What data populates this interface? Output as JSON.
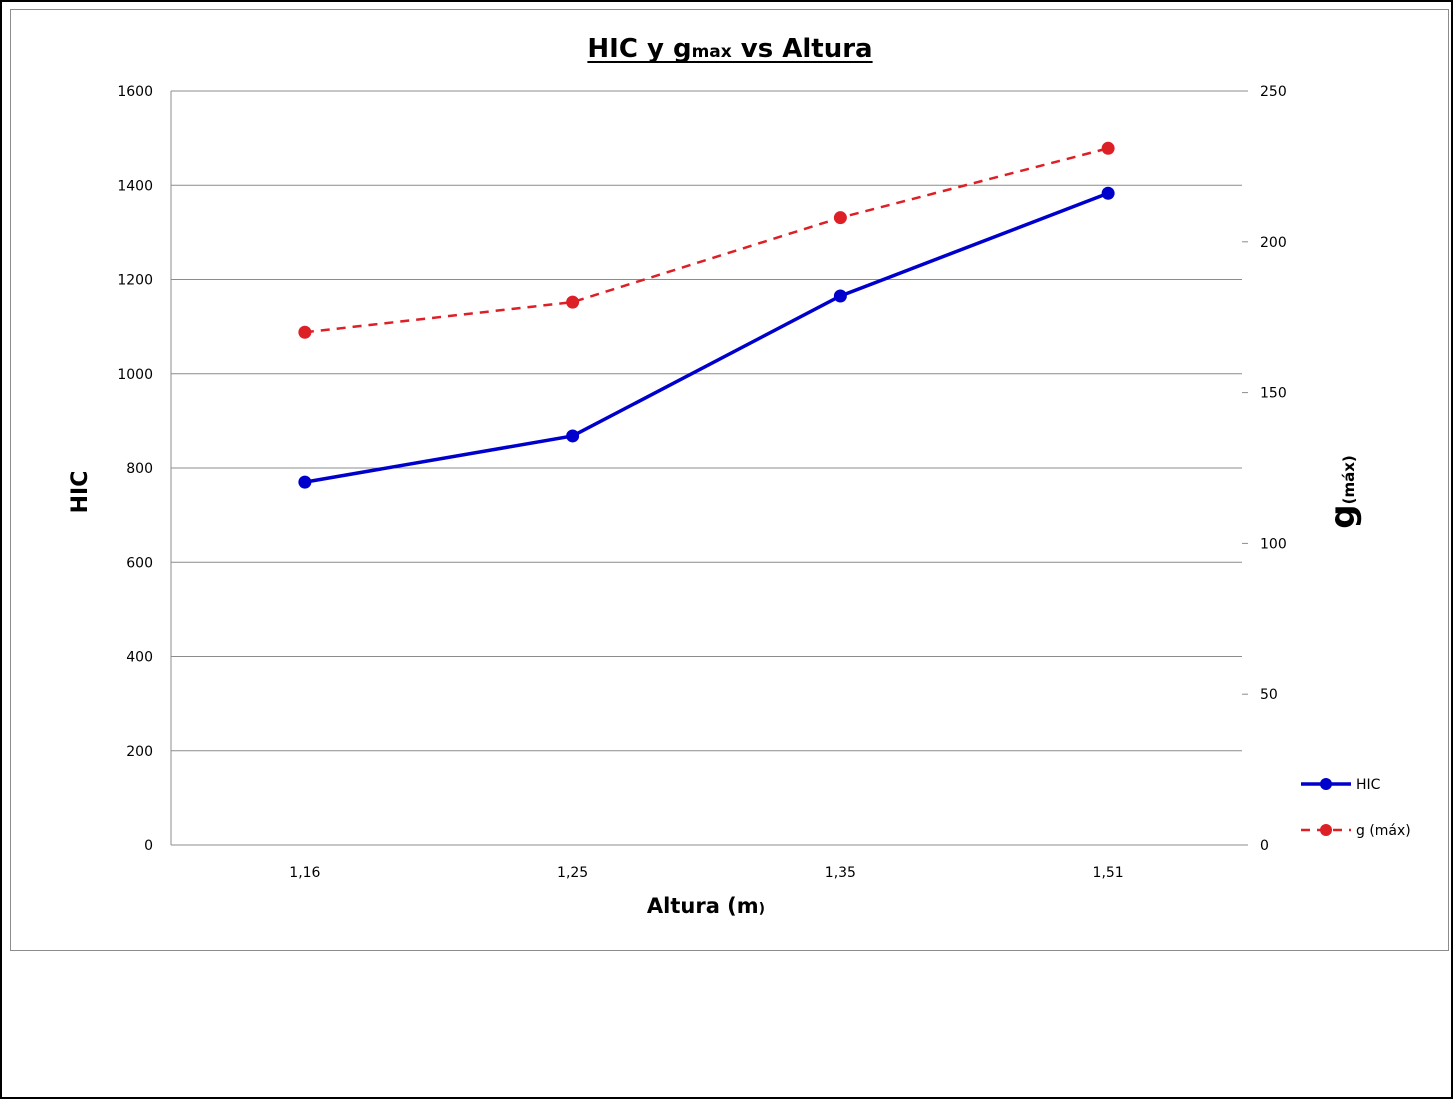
{
  "chart_data": {
    "type": "line",
    "title_main": "HIC y g",
    "title_sub": "max",
    "title_tail": " vs Altura",
    "xlabel_main": "Altura (m",
    "xlabel_tail": ")",
    "ylabel_left": "HIC",
    "ylabel_right_main": "g",
    "ylabel_right_sub": "(máx)",
    "categories": [
      "1,16",
      "1,25",
      "1,35",
      "1,51"
    ],
    "y_left": {
      "min": 0,
      "max": 1600,
      "ticks": [
        "0",
        "200",
        "400",
        "600",
        "800",
        "1000",
        "1200",
        "1400",
        "1600"
      ]
    },
    "y_right": {
      "min": 0,
      "max": 250,
      "ticks": [
        "0",
        "50",
        "100",
        "150",
        "200",
        "250"
      ]
    },
    "grid": true,
    "legend_position": "right",
    "series": [
      {
        "name": "HIC",
        "axis": "left",
        "values": [
          770,
          868,
          1165,
          1383
        ],
        "color": "#0000cc",
        "style": "solid"
      },
      {
        "name": "g (máx)",
        "axis": "right",
        "values": [
          170,
          180,
          208,
          231
        ],
        "color": "#dd1f26",
        "style": "dashed"
      }
    ]
  }
}
